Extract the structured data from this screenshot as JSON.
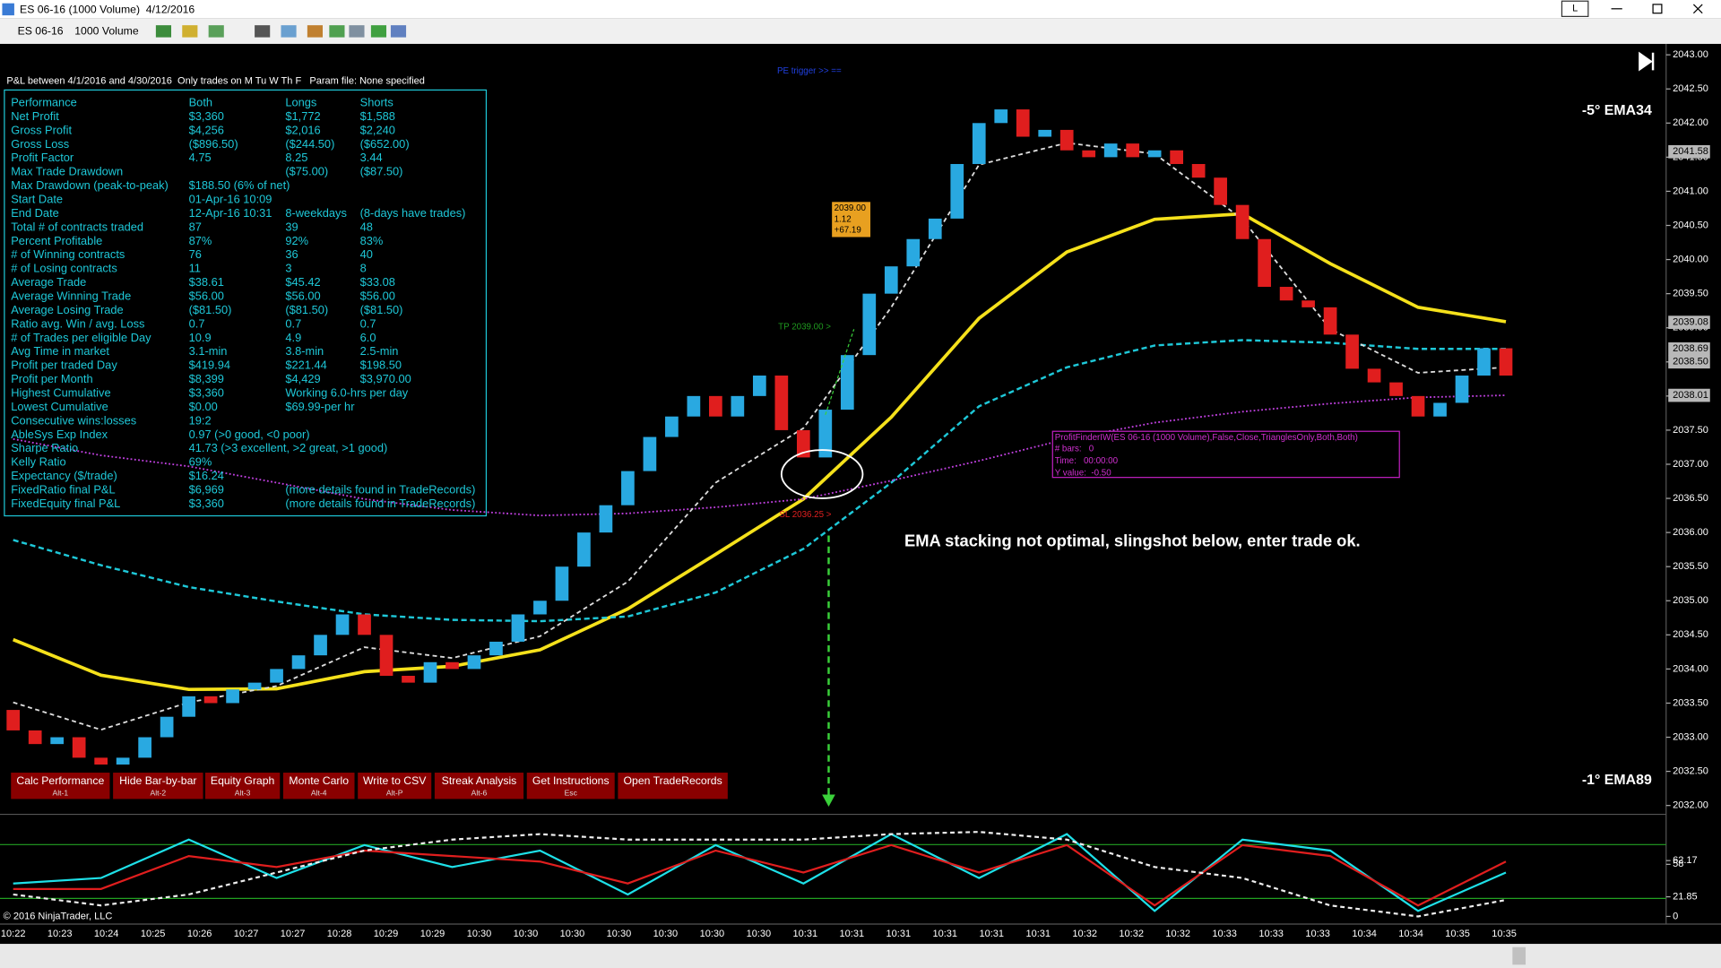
{
  "title_bar": {
    "title": "ES 06-16 (1000 Volume)  4/12/2016",
    "window_button": "L"
  },
  "toolbar": {
    "instrument": "ES 06-16",
    "interval": "1000 Volume"
  },
  "stats": {
    "header": "P&L between 4/1/2016 and 4/30/2016  Only trades on M Tu W Th F   Param file: None specified",
    "rows": [
      [
        "Performance",
        "Both",
        "Longs",
        "Shorts"
      ],
      [
        "Net Profit",
        "$3,360",
        "$1,772",
        "$1,588"
      ],
      [
        "Gross Profit",
        "$4,256",
        "$2,016",
        "$2,240"
      ],
      [
        "Gross Loss",
        "($896.50)",
        "($244.50)",
        "($652.00)"
      ],
      [
        "Profit Factor",
        "4.75",
        "8.25",
        "3.44"
      ],
      [
        "Max Trade Drawdown",
        null,
        "($75.00)",
        "($87.50)"
      ],
      [
        "Max Drawdown (peak-to-peak)",
        "$188.50 (6% of net)",
        null,
        null
      ],
      [
        "Start Date",
        "01-Apr-16 10:09",
        null,
        null
      ],
      [
        "End Date",
        "12-Apr-16 10:31",
        "8-weekdays",
        "(8-days have trades)"
      ],
      [
        "Total # of contracts traded",
        "87",
        "39",
        "48"
      ],
      [
        "Percent Profitable",
        "87%",
        "92%",
        "83%"
      ],
      [
        "# of Winning contracts",
        "76",
        "36",
        "40"
      ],
      [
        "# of Losing contracts",
        "11",
        "3",
        "8"
      ],
      [
        "Average Trade",
        "$38.61",
        "$45.42",
        "$33.08"
      ],
      [
        "Average Winning Trade",
        "$56.00",
        "$56.00",
        "$56.00"
      ],
      [
        "Average Losing Trade",
        "($81.50)",
        "($81.50)",
        "($81.50)"
      ],
      [
        "Ratio avg. Win / avg. Loss",
        "0.7",
        "0.7",
        "0.7"
      ],
      [
        "# of Trades per eligible Day",
        "10.9",
        "4.9",
        "6.0"
      ],
      [
        "Avg Time in market",
        "3.1-min",
        "3.8-min",
        "2.5-min"
      ],
      [
        "Profit per traded Day",
        "$419.94",
        "$221.44",
        "$198.50"
      ],
      [
        "Profit per Month",
        "$8,399",
        "$4,429",
        "$3,970.00"
      ],
      [
        "Highest Cumulative",
        "$3,360",
        "Working 6.0-hrs per day",
        null
      ],
      [
        "Lowest Cumulative",
        "$0.00",
        "$69.99-per hr",
        null
      ],
      [
        "Consecutive wins:losses",
        "19:2",
        null,
        null
      ],
      [
        "AbleSys Exp Index",
        "0.97 (>0 good, <0 poor)",
        null,
        null
      ],
      [
        "Sharpe Ratio",
        "41.73 (>3 excellent, >2 great, >1 good)",
        null,
        null
      ],
      [
        "Kelly Ratio",
        "69%",
        null,
        null
      ],
      [
        "Expectancy ($/trade)",
        "$16.24",
        null,
        null
      ],
      [
        "FixedRatio final P&L",
        "$6,969",
        "(more details found in TradeRecords)",
        null
      ],
      [
        "FixedEquity final P&L",
        "$3,360",
        "(more details found in TradeRecords)",
        null
      ]
    ]
  },
  "buttons": [
    {
      "label": "Calc Performance",
      "key": "Alt-1"
    },
    {
      "label": "Hide Bar-by-bar",
      "key": "Alt-2"
    },
    {
      "label": "Equity Graph",
      "key": "Alt-3"
    },
    {
      "label": "Monte Carlo",
      "key": "Alt-4"
    },
    {
      "label": "Write to CSV",
      "key": "Alt-P"
    },
    {
      "label": "Streak Analysis",
      "key": "Alt-6"
    },
    {
      "label": "Get Instructions",
      "key": "Esc"
    },
    {
      "label": "Open TradeRecords"
    }
  ],
  "annotations": {
    "comment": "EMA stacking not optimal, slingshot below, enter trade ok.",
    "ema34": "-5° EMA34",
    "ema89": "-1° EMA89",
    "copyright": "© 2016 NinjaTrader, LLC",
    "trigger": "PE trigger >> ==",
    "target": "TP 2039.00 >",
    "stop": "SL 2036.25 >",
    "trade_box": [
      "2039.00",
      "1.12",
      "+67.19"
    ],
    "indicator_box": [
      "ProfitFinderIW(ES 06-16 (1000 Volume),False,Close,TrianglesOnly,Both,Both)",
      "# bars:   0",
      "Time:   00:00:00",
      "Y value:  -0.50"
    ]
  },
  "chart_data": {
    "type": "candlestick",
    "open": [
      2033.4,
      2033.1,
      2032.9,
      2033.0,
      2032.7,
      2032.6,
      2032.7,
      2033.0,
      2033.3,
      2033.6,
      2033.5,
      2033.7,
      2033.8,
      2034.0,
      2034.2,
      2034.5,
      2034.8,
      2034.5,
      2033.9,
      2033.8,
      2034.1,
      2034.0,
      2034.2,
      2034.4,
      2034.8,
      2035.0,
      2035.5,
      2036.0,
      2036.4,
      2036.9,
      2037.4,
      2037.7,
      2038.0,
      2037.7,
      2038.0,
      2038.3,
      2037.5,
      2037.1,
      2037.8,
      2038.6,
      2039.5,
      2039.9,
      2040.3,
      2040.6,
      2041.4,
      2042.0,
      2042.2,
      2041.8,
      2041.9,
      2041.6,
      2041.5,
      2041.7,
      2041.5,
      2041.6,
      2041.4,
      2041.2,
      2040.8,
      2040.3,
      2039.6,
      2039.4,
      2039.3,
      2038.9,
      2038.4,
      2038.2,
      2038.0,
      2037.7,
      2037.9,
      2038.3,
      2038.7
    ],
    "close": [
      2033.1,
      2032.9,
      2033.0,
      2032.7,
      2032.6,
      2032.7,
      2033.0,
      2033.3,
      2033.6,
      2033.5,
      2033.7,
      2033.8,
      2034.0,
      2034.2,
      2034.5,
      2034.8,
      2034.5,
      2033.9,
      2033.8,
      2034.1,
      2034.0,
      2034.2,
      2034.4,
      2034.8,
      2035.0,
      2035.5,
      2036.0,
      2036.4,
      2036.9,
      2037.4,
      2037.7,
      2038.0,
      2037.7,
      2038.0,
      2038.3,
      2037.5,
      2037.1,
      2037.8,
      2038.6,
      2039.5,
      2039.9,
      2040.3,
      2040.6,
      2041.4,
      2042.0,
      2042.2,
      2041.8,
      2041.9,
      2041.6,
      2041.5,
      2041.7,
      2041.5,
      2041.6,
      2041.4,
      2041.2,
      2040.8,
      2040.3,
      2039.6,
      2039.4,
      2039.3,
      2038.9,
      2038.4,
      2038.2,
      2038.0,
      2037.7,
      2037.9,
      2038.3,
      2038.7,
      2038.3
    ],
    "up_color": "#29a9e1",
    "down_color": "#e01e1e",
    "series_bars": [
      0,
      4,
      8,
      12,
      16,
      20,
      24,
      28,
      32,
      36,
      40,
      44,
      48,
      52,
      56,
      60,
      64,
      68
    ],
    "series": [
      {
        "color": "#f5e11b",
        "dash": "none",
        "width": 3,
        "values": [
          2034.43,
          2033.91,
          2033.7,
          2033.71,
          2033.96,
          2034.04,
          2034.28,
          2034.88,
          2035.68,
          2036.49,
          2037.69,
          2039.14,
          2040.11,
          2040.59,
          2040.67,
          2039.94,
          2039.3,
          2039.09
        ]
      },
      {
        "color": "#1ec8d8",
        "dash": "5 3",
        "width": 2,
        "values": [
          2035.89,
          2035.52,
          2035.2,
          2034.99,
          2034.8,
          2034.72,
          2034.7,
          2034.77,
          2035.12,
          2035.76,
          2036.73,
          2037.85,
          2038.42,
          2038.74,
          2038.82,
          2038.78,
          2038.69,
          2038.69
        ]
      },
      {
        "color": "#c040e0",
        "dash": "1.5 2",
        "width": 1.5,
        "values": [
          2037.37,
          2037.13,
          2036.97,
          2036.73,
          2036.49,
          2036.33,
          2036.25,
          2036.28,
          2036.37,
          2036.49,
          2036.76,
          2037.05,
          2037.37,
          2037.61,
          2037.77,
          2037.89,
          2037.98,
          2038.01
        ]
      },
      {
        "color": "#dddddd",
        "dash": "4 3",
        "width": 1.5,
        "values": [
          2033.51,
          2033.11,
          2033.51,
          2033.75,
          2034.32,
          2034.16,
          2034.48,
          2035.28,
          2036.73,
          2037.53,
          2039.3,
          2041.39,
          2041.71,
          2041.55,
          2040.59,
          2038.98,
          2038.34,
          2038.42
        ]
      }
    ],
    "ylim": [
      2031.87,
      2043.16
    ],
    "yticks": [
      {
        "value": 2032,
        "label": "2032.00"
      },
      {
        "value": 2032.5,
        "label": "2032.50"
      },
      {
        "value": 2033,
        "label": "2033.00"
      },
      {
        "value": 2033.5,
        "label": "2033.50"
      },
      {
        "value": 2034,
        "label": "2034.00"
      },
      {
        "value": 2034.5,
        "label": "2034.50"
      },
      {
        "value": 2035,
        "label": "2035.00"
      },
      {
        "value": 2035.5,
        "label": "2035.50"
      },
      {
        "value": 2036,
        "label": "2036.00"
      },
      {
        "value": 2036.5,
        "label": "2036.50"
      },
      {
        "value": 2037,
        "label": "2037.00"
      },
      {
        "value": 2037.5,
        "label": "2037.50"
      },
      {
        "value": 2038,
        "label": "2038.00"
      },
      {
        "value": 2038.5,
        "label": "2038.50"
      },
      {
        "value": 2039,
        "label": "2039.00"
      },
      {
        "value": 2039.5,
        "label": "2039.50"
      },
      {
        "value": 2040,
        "label": "2040.00"
      },
      {
        "value": 2040.5,
        "label": "2040.50"
      },
      {
        "value": 2041,
        "label": "2041.00"
      },
      {
        "value": 2041.5,
        "label": "2041.50"
      },
      {
        "value": 2042,
        "label": "2042.00"
      },
      {
        "value": 2042.5,
        "label": "2042.50"
      },
      {
        "value": 2043,
        "label": "2043.00"
      }
    ],
    "price_tags": [
      2041.58,
      2039.08,
      2038.69,
      {
        "value": 2038.5,
        "label": "2038.50"
      },
      2038.01
    ],
    "time_axis": [
      "10:22",
      "10:23",
      "10:24",
      "10:25",
      "10:26",
      "10:27",
      "10:27",
      "10:28",
      "10:29",
      "10:29",
      "10:30",
      "10:30",
      "10:30",
      "10:30",
      "10:30",
      "10:30",
      "10:30",
      "10:31",
      "10:31",
      "10:31",
      "10:31",
      "10:31",
      "10:31",
      "10:32",
      "10:32",
      "10:32",
      "10:33",
      "10:33",
      "10:33",
      "10:34",
      "10:34",
      "10:35",
      "10:35"
    ]
  },
  "oscillator": {
    "ylim": [
      0,
      110
    ],
    "levels": [
      20,
      80
    ],
    "level_color": "#22a022",
    "series": [
      {
        "color": "#1ee0e8",
        "dash": "none",
        "values": [
          36.7,
          42.8,
          85.6,
          42.8,
          79.5,
          55.0,
          73.3,
          24.4,
          79.5,
          36.7,
          91.7,
          42.8,
          91.7,
          6.1,
          85.6,
          73.3,
          6.1,
          48.9
        ]
      },
      {
        "color": "#e01e1e",
        "dash": "none",
        "values": [
          30.6,
          30.6,
          67.2,
          55.0,
          73.3,
          67.2,
          61.1,
          36.7,
          73.3,
          48.9,
          79.5,
          48.9,
          79.5,
          12.2,
          79.5,
          67.2,
          12.2,
          61.1
        ]
      },
      {
        "color": "#eeeeee",
        "dash": "4 3",
        "values": [
          24.4,
          12.2,
          24.4,
          48.9,
          73.3,
          85.6,
          91.7,
          85.6,
          85.6,
          85.6,
          91.7,
          94.1,
          85.6,
          55.0,
          42.8,
          12.2,
          0,
          18.3
        ]
      }
    ],
    "ticks": [
      62.17,
      58,
      21.85,
      0
    ]
  }
}
